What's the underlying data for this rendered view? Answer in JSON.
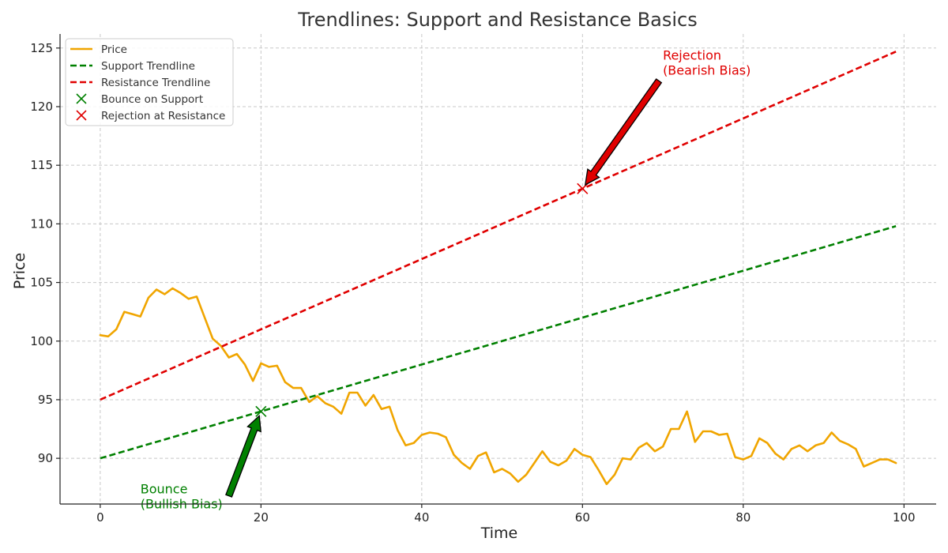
{
  "chart_data": {
    "type": "line",
    "title": "Trendlines: Support and Resistance Basics",
    "xlabel": "Time",
    "ylabel": "Price",
    "xlim": [
      -5,
      104
    ],
    "ylim": [
      86.1,
      126.2
    ],
    "x_ticks": [
      0,
      20,
      40,
      60,
      80,
      100
    ],
    "y_ticks": [
      90,
      95,
      100,
      105,
      110,
      115,
      120,
      125
    ],
    "grid": true,
    "legend_position": "upper-left",
    "series": [
      {
        "name": "Price",
        "kind": "line",
        "color": "#f0a500",
        "x": [
          0,
          1,
          2,
          3,
          4,
          5,
          6,
          7,
          8,
          9,
          10,
          11,
          12,
          13,
          14,
          15,
          16,
          17,
          18,
          19,
          20,
          21,
          22,
          23,
          24,
          25,
          26,
          27,
          28,
          29,
          30,
          31,
          32,
          33,
          34,
          35,
          36,
          37,
          38,
          39,
          40,
          41,
          42,
          43,
          44,
          45,
          46,
          47,
          48,
          49,
          50,
          51,
          52,
          53,
          54,
          55,
          56,
          57,
          58,
          59,
          60,
          61,
          62,
          63,
          64,
          65,
          66,
          67,
          68,
          69,
          70,
          71,
          72,
          73,
          74,
          75,
          76,
          77,
          78,
          79,
          80,
          81,
          82,
          83,
          84,
          85,
          86,
          87,
          88,
          89,
          90,
          91,
          92,
          93,
          94,
          95,
          96,
          97,
          98,
          99
        ],
        "y": [
          100.5,
          100.4,
          101.0,
          102.5,
          102.3,
          102.1,
          103.7,
          104.4,
          104.0,
          104.5,
          104.1,
          103.6,
          103.8,
          102.0,
          100.2,
          99.6,
          98.6,
          98.9,
          98.0,
          96.6,
          98.1,
          97.8,
          97.9,
          96.5,
          96.0,
          96.0,
          94.8,
          95.3,
          94.7,
          94.4,
          93.8,
          95.6,
          95.6,
          94.5,
          95.4,
          94.2,
          94.4,
          92.4,
          91.1,
          91.3,
          92.0,
          92.2,
          92.1,
          91.8,
          90.3,
          89.6,
          89.1,
          90.2,
          90.5,
          88.8,
          89.1,
          88.7,
          88.0,
          88.6,
          89.6,
          90.6,
          89.7,
          89.4,
          89.8,
          90.8,
          90.3,
          90.1,
          89.0,
          87.8,
          88.6,
          90.0,
          89.9,
          90.9,
          91.3,
          90.6,
          91.0,
          92.5,
          92.5,
          94.0,
          91.4,
          92.3,
          92.3,
          92.0,
          92.1,
          90.1,
          89.9,
          90.2,
          91.7,
          91.3,
          90.4,
          89.9,
          90.8,
          91.1,
          90.6,
          91.1,
          91.3,
          92.2,
          91.5,
          91.2,
          90.8,
          89.3,
          89.6,
          89.9,
          89.9,
          89.6
        ]
      },
      {
        "name": "Support Trendline",
        "kind": "dashed-line",
        "color": "#008000",
        "x": [
          0,
          99
        ],
        "y": [
          90.0,
          109.8
        ]
      },
      {
        "name": "Resistance Trendline",
        "kind": "dashed-line",
        "color": "#e00000",
        "x": [
          0,
          99
        ],
        "y": [
          95.0,
          124.7
        ]
      },
      {
        "name": "Bounce on Support",
        "kind": "marker",
        "color": "#008000",
        "x": [
          20
        ],
        "y": [
          94.0
        ]
      },
      {
        "name": "Rejection at Resistance",
        "kind": "marker",
        "color": "#e00000",
        "x": [
          60
        ],
        "y": [
          113.0
        ]
      }
    ],
    "annotations": [
      {
        "lines": [
          "Rejection",
          "(Bearish Bias)"
        ],
        "color": "#e00000",
        "point": [
          60,
          113.0
        ],
        "text_at": [
          70,
          124.0
        ],
        "arrow_from": [
          69.5,
          122.2
        ]
      },
      {
        "lines": [
          "Bounce",
          "(Bullish Bias)"
        ],
        "color": "#008000",
        "point": [
          20,
          94.0
        ],
        "text_at": [
          5,
          87.0
        ],
        "arrow_from": [
          16,
          86.8
        ]
      }
    ]
  }
}
